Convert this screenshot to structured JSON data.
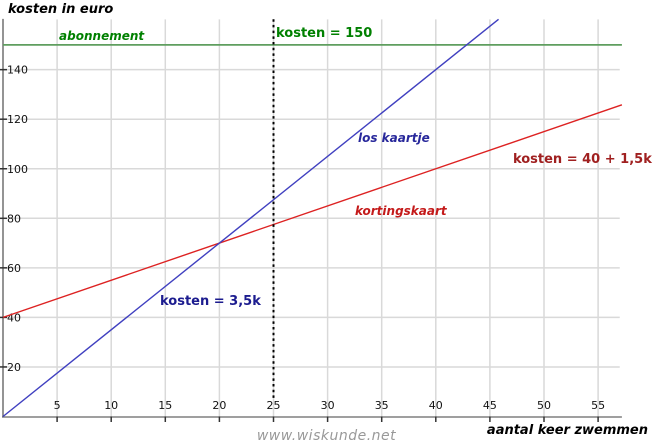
{
  "page": {
    "title": "kosten in euro",
    "x_axis_title": "aantal keer zwemmen",
    "watermark": "www.wiskunde.net"
  },
  "chart_data": {
    "type": "line",
    "title": "kosten in euro",
    "xlabel": "aantal keer zwemmen",
    "ylabel": "kosten in euro",
    "xlim": [
      0,
      57.2
    ],
    "ylim": [
      0,
      160.3
    ],
    "grid": true,
    "x_ticks": [
      5,
      10,
      15,
      20,
      25,
      30,
      35,
      40,
      45,
      50,
      55
    ],
    "y_ticks": [
      20,
      40,
      60,
      80,
      100,
      120,
      140
    ],
    "colors": {
      "grid": "#d9d9d9",
      "axis": "#666666",
      "tick": "#333333",
      "tick_label": "#111111",
      "reference_line": "#000000"
    },
    "series": [
      {
        "name": "abonnement",
        "equation": "kosten = 150",
        "color": "#5f9e5f",
        "width": 1.8,
        "points": [
          [
            0,
            150
          ],
          [
            57.2,
            150
          ]
        ]
      },
      {
        "name": "kortingskaart",
        "equation": "kosten = 40 + 1,5k",
        "color": "#dd2222",
        "width": 1.4,
        "points": [
          [
            0,
            40
          ],
          [
            57.2,
            125.8
          ]
        ]
      },
      {
        "name": "los kaartje",
        "equation": "kosten = 3,5k",
        "color": "#4040c0",
        "width": 1.4,
        "points": [
          [
            0,
            0
          ],
          [
            45.8,
            160.3
          ]
        ]
      }
    ],
    "reference_line": {
      "x": 25,
      "y_from": 7.5,
      "y_to": 160.8,
      "style": "dotted",
      "color": "#000000"
    },
    "annotations": [
      {
        "id": "abonnement-label",
        "text": "abonnement",
        "x": 5.18,
        "y": 152.0,
        "color": "#008000",
        "italic": true,
        "size": 12
      },
      {
        "id": "kosten-150-label",
        "text": "kosten = 150",
        "x": 25.23,
        "y": 153.2,
        "color": "#008000",
        "italic": false,
        "size": 13
      },
      {
        "id": "los-kaartje-label",
        "text": "los kaartje",
        "x": 32.81,
        "y": 110.8,
        "color": "#28289b",
        "italic": true,
        "size": 12
      },
      {
        "id": "kosten-40-15k-label",
        "text": "kosten = 40 + 1,5k",
        "x": 47.13,
        "y": 102.3,
        "color": "#a02020",
        "italic": false,
        "size": 13
      },
      {
        "id": "kortingskaart-label",
        "text": "kortingskaart",
        "x": 32.53,
        "y": 81.3,
        "color": "#c41a1a",
        "italic": true,
        "size": 12
      },
      {
        "id": "kosten-35k-label",
        "text": "kosten = 3,5k",
        "x": 14.51,
        "y": 45.0,
        "color": "#1c1c8f",
        "italic": false,
        "size": 13
      }
    ]
  }
}
